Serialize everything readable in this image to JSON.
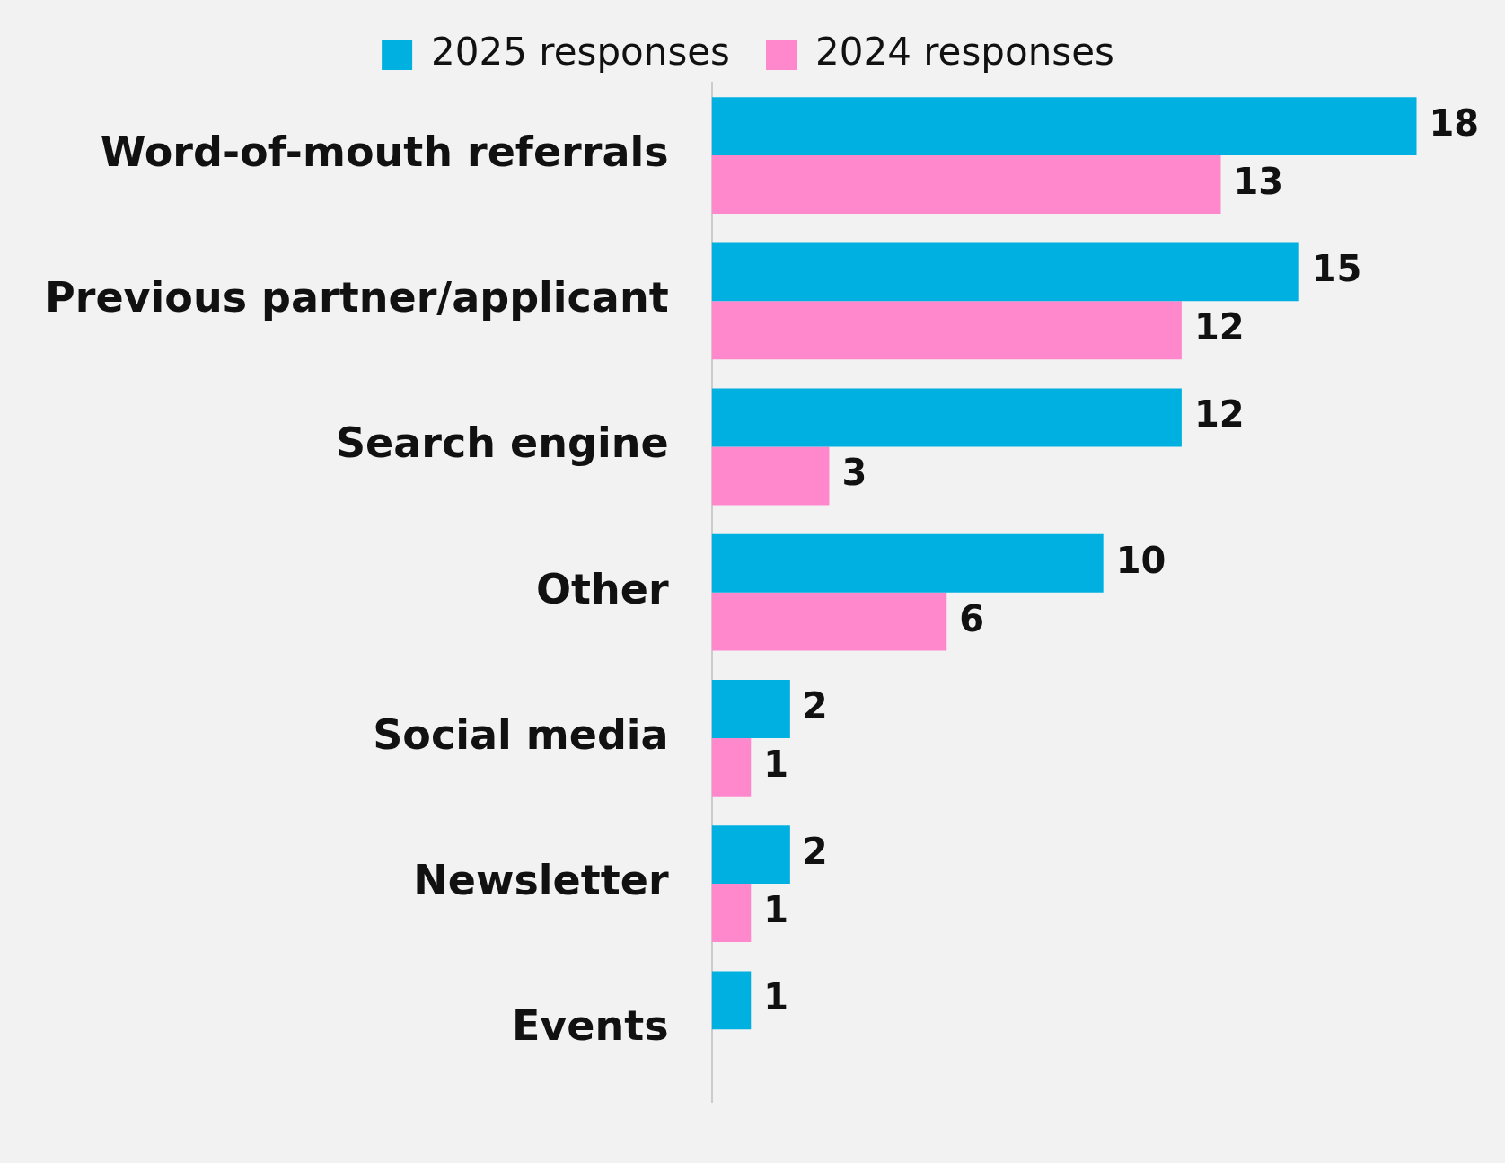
{
  "chart_data": {
    "type": "bar",
    "orientation": "horizontal",
    "categories": [
      "Word-of-mouth referrals",
      "Previous partner/applicant",
      "Search engine",
      "Other",
      "Social media",
      "Newsletter",
      "Events"
    ],
    "series": [
      {
        "name": "2025 responses",
        "color": "#00b0e0",
        "values": [
          18,
          15,
          12,
          10,
          2,
          2,
          1
        ]
      },
      {
        "name": "2024 responses",
        "color": "#ff88cc",
        "values": [
          13,
          12,
          3,
          6,
          1,
          1,
          null
        ]
      }
    ],
    "data_labels": true,
    "legend": "top",
    "grid": false
  }
}
